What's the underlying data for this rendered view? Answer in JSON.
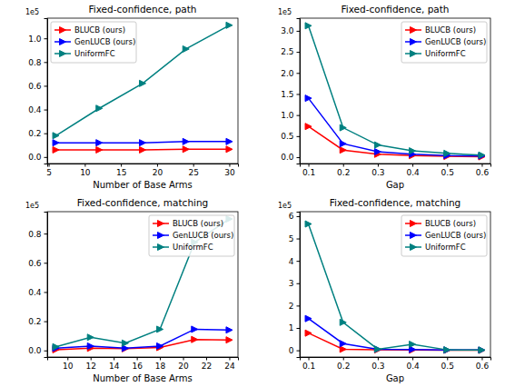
{
  "chart_data": [
    {
      "type": "line",
      "title": "Fixed-confidence, path",
      "x_label": "Number of Base Arms",
      "annotations": [
        "1e5"
      ],
      "x": [
        6,
        12,
        18,
        24,
        30
      ],
      "xlim": [
        4.8,
        31.2
      ],
      "xticks": [
        5,
        10,
        15,
        20,
        25,
        30
      ],
      "ylim": [
        -0.055,
        1.17
      ],
      "yticks": [
        {
          "value": 0,
          "label": "0.0"
        },
        0.2,
        0.4,
        0.6,
        0.8,
        {
          "value": 1,
          "label": "1.0"
        }
      ],
      "legend": "upper left",
      "marker": "triangle-right",
      "series": [
        {
          "name": "BLUCB (ours)",
          "color": "#ff0000",
          "values": [
            0.06,
            0.06,
            0.06,
            0.065,
            0.065
          ]
        },
        {
          "name": "GenLUCB (ours)",
          "color": "#0000ff",
          "values": [
            0.12,
            0.12,
            0.12,
            0.13,
            0.13
          ]
        },
        {
          "name": "UniformFC",
          "color": "#008080",
          "values": [
            0.18,
            0.41,
            0.62,
            0.91,
            1.11
          ]
        }
      ]
    },
    {
      "type": "line",
      "title": "Fixed-confidence, path",
      "x_label": "Gap",
      "annotations": [
        "1e5"
      ],
      "x": [
        0.1,
        0.2,
        0.3,
        0.4,
        0.5,
        0.6
      ],
      "xlim": [
        0.075,
        0.625
      ],
      "xticks": [
        0.1,
        0.2,
        0.3,
        0.4,
        0.5,
        0.6
      ],
      "ylim": [
        -0.15,
        3.3
      ],
      "yticks": [
        {
          "value": 0,
          "label": "0.0"
        },
        0.5,
        {
          "value": 1,
          "label": "1.0"
        },
        1.5,
        {
          "value": 2,
          "label": "2.0"
        },
        2.5,
        {
          "value": 3,
          "label": "3.0"
        }
      ],
      "legend": "upper right",
      "marker": "triangle-right",
      "series": [
        {
          "name": "BLUCB (ours)",
          "color": "#ff0000",
          "values": [
            0.73,
            0.17,
            0.07,
            0.04,
            0.02,
            0.01
          ]
        },
        {
          "name": "GenLUCB (ours)",
          "color": "#0000ff",
          "values": [
            1.4,
            0.32,
            0.13,
            0.07,
            0.04,
            0.03
          ]
        },
        {
          "name": "UniformFC",
          "color": "#008080",
          "values": [
            3.12,
            0.7,
            0.29,
            0.15,
            0.09,
            0.05
          ]
        }
      ]
    },
    {
      "type": "line",
      "title": "Fixed-confidence, matching",
      "x_label": "Number of Base Arms",
      "annotations": [
        "1e5"
      ],
      "x": [
        9,
        12,
        15,
        18,
        21,
        24
      ],
      "xlim": [
        8.25,
        24.75
      ],
      "xticks": [
        10,
        12,
        14,
        16,
        18,
        20,
        22,
        24
      ],
      "ylim": [
        -0.045,
        0.95
      ],
      "yticks": [
        {
          "value": 0,
          "label": "0.0"
        },
        0.2,
        0.4,
        0.6,
        0.8
      ],
      "legend": "upper right",
      "marker": "triangle-right",
      "series": [
        {
          "name": "BLUCB (ours)",
          "color": "#ff0000",
          "values": [
            0.005,
            0.015,
            0.012,
            0.02,
            0.075,
            0.072
          ]
        },
        {
          "name": "GenLUCB (ours)",
          "color": "#0000ff",
          "values": [
            0.015,
            0.03,
            0.015,
            0.03,
            0.145,
            0.14
          ]
        },
        {
          "name": "UniformFC",
          "color": "#008080",
          "values": [
            0.025,
            0.09,
            0.05,
            0.145,
            0.74,
            0.9
          ]
        }
      ]
    },
    {
      "type": "line",
      "title": "Fixed-confidence, matching",
      "x_label": "Gap",
      "annotations": [
        "1e5"
      ],
      "x": [
        0.1,
        0.2,
        0.3,
        0.4,
        0.5,
        0.6
      ],
      "xlim": [
        0.075,
        0.625
      ],
      "xticks": [
        0.1,
        0.2,
        0.3,
        0.4,
        0.5,
        0.6
      ],
      "ylim": [
        -0.3,
        6.2
      ],
      "yticks": [
        0,
        1,
        2,
        3,
        4,
        5,
        6
      ],
      "legend": "upper right",
      "marker": "triangle-right",
      "series": [
        {
          "name": "BLUCB (ours)",
          "color": "#ff0000",
          "values": [
            0.77,
            0.05,
            0.02,
            0.01,
            0.005,
            0.003
          ]
        },
        {
          "name": "GenLUCB (ours)",
          "color": "#0000ff",
          "values": [
            1.42,
            0.3,
            0.05,
            0.04,
            0.01,
            0.01
          ]
        },
        {
          "name": "UniformFC",
          "color": "#008080",
          "values": [
            5.65,
            1.25,
            0.05,
            0.27,
            0.02,
            0.01
          ]
        }
      ]
    }
  ]
}
